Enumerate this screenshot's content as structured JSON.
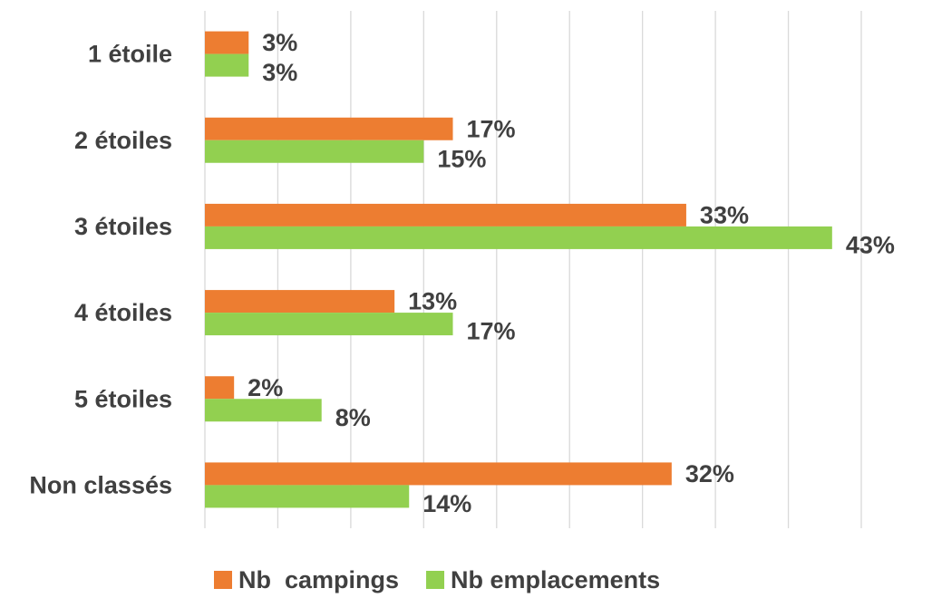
{
  "chart_data": {
    "type": "bar",
    "orientation": "horizontal",
    "categories": [
      "1 étoile",
      "2 étoiles",
      "3 étoiles",
      "4 étoiles",
      "5 étoiles",
      "Non classés"
    ],
    "series": [
      {
        "name": "Nb  campings",
        "color": "#ed7d31",
        "values": [
          3,
          17,
          33,
          13,
          2,
          32
        ],
        "value_labels": [
          "3%",
          "17%",
          "33%",
          "13%",
          "2%",
          "32%"
        ]
      },
      {
        "name": "Nb emplacements",
        "color": "#92d050",
        "values": [
          3,
          15,
          43,
          17,
          8,
          14
        ],
        "value_labels": [
          "3%",
          "15%",
          "43%",
          "17%",
          "8%",
          "14%"
        ]
      }
    ],
    "xlim": [
      0,
      45
    ],
    "xticks": [
      0,
      5,
      10,
      15,
      20,
      25,
      30,
      35,
      40,
      45
    ],
    "grid": true,
    "legend": "bottom"
  }
}
